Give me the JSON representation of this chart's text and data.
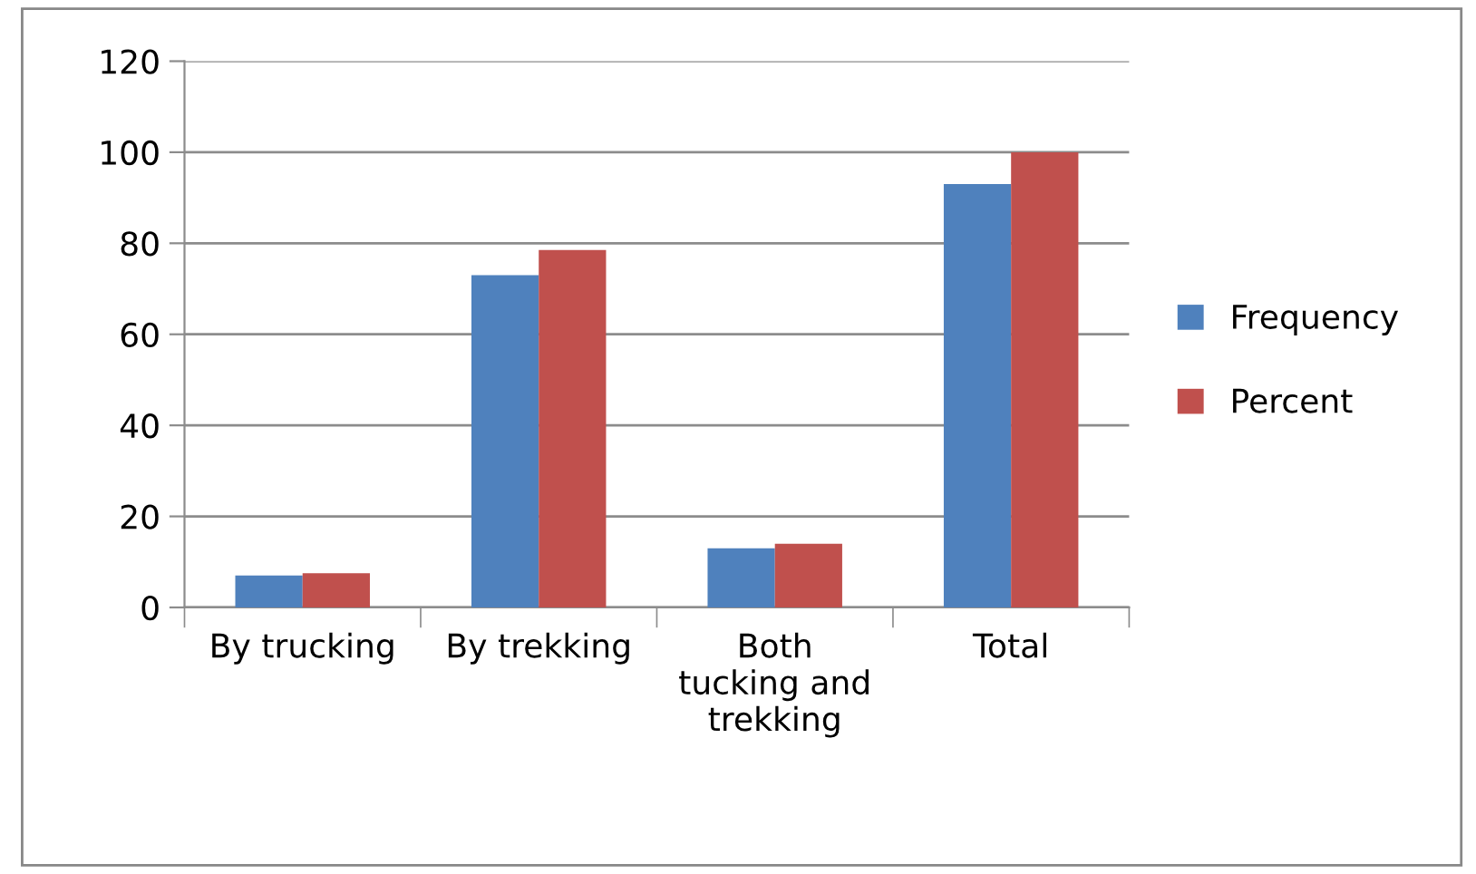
{
  "chart_data": {
    "type": "bar",
    "categories": [
      "By trucking",
      "By trekking",
      "Both\ntucking and\ntrekking",
      "Total"
    ],
    "series": [
      {
        "name": "Frequency",
        "color": "#4f81bd",
        "values": [
          7,
          73,
          13,
          93
        ]
      },
      {
        "name": "Percent",
        "color": "#c0504d",
        "values": [
          7.5,
          78.5,
          14,
          100
        ]
      }
    ],
    "ylim": [
      0,
      120
    ],
    "yticks": [
      0,
      20,
      40,
      60,
      80,
      100,
      120
    ],
    "grid": "y",
    "legend": "right"
  }
}
